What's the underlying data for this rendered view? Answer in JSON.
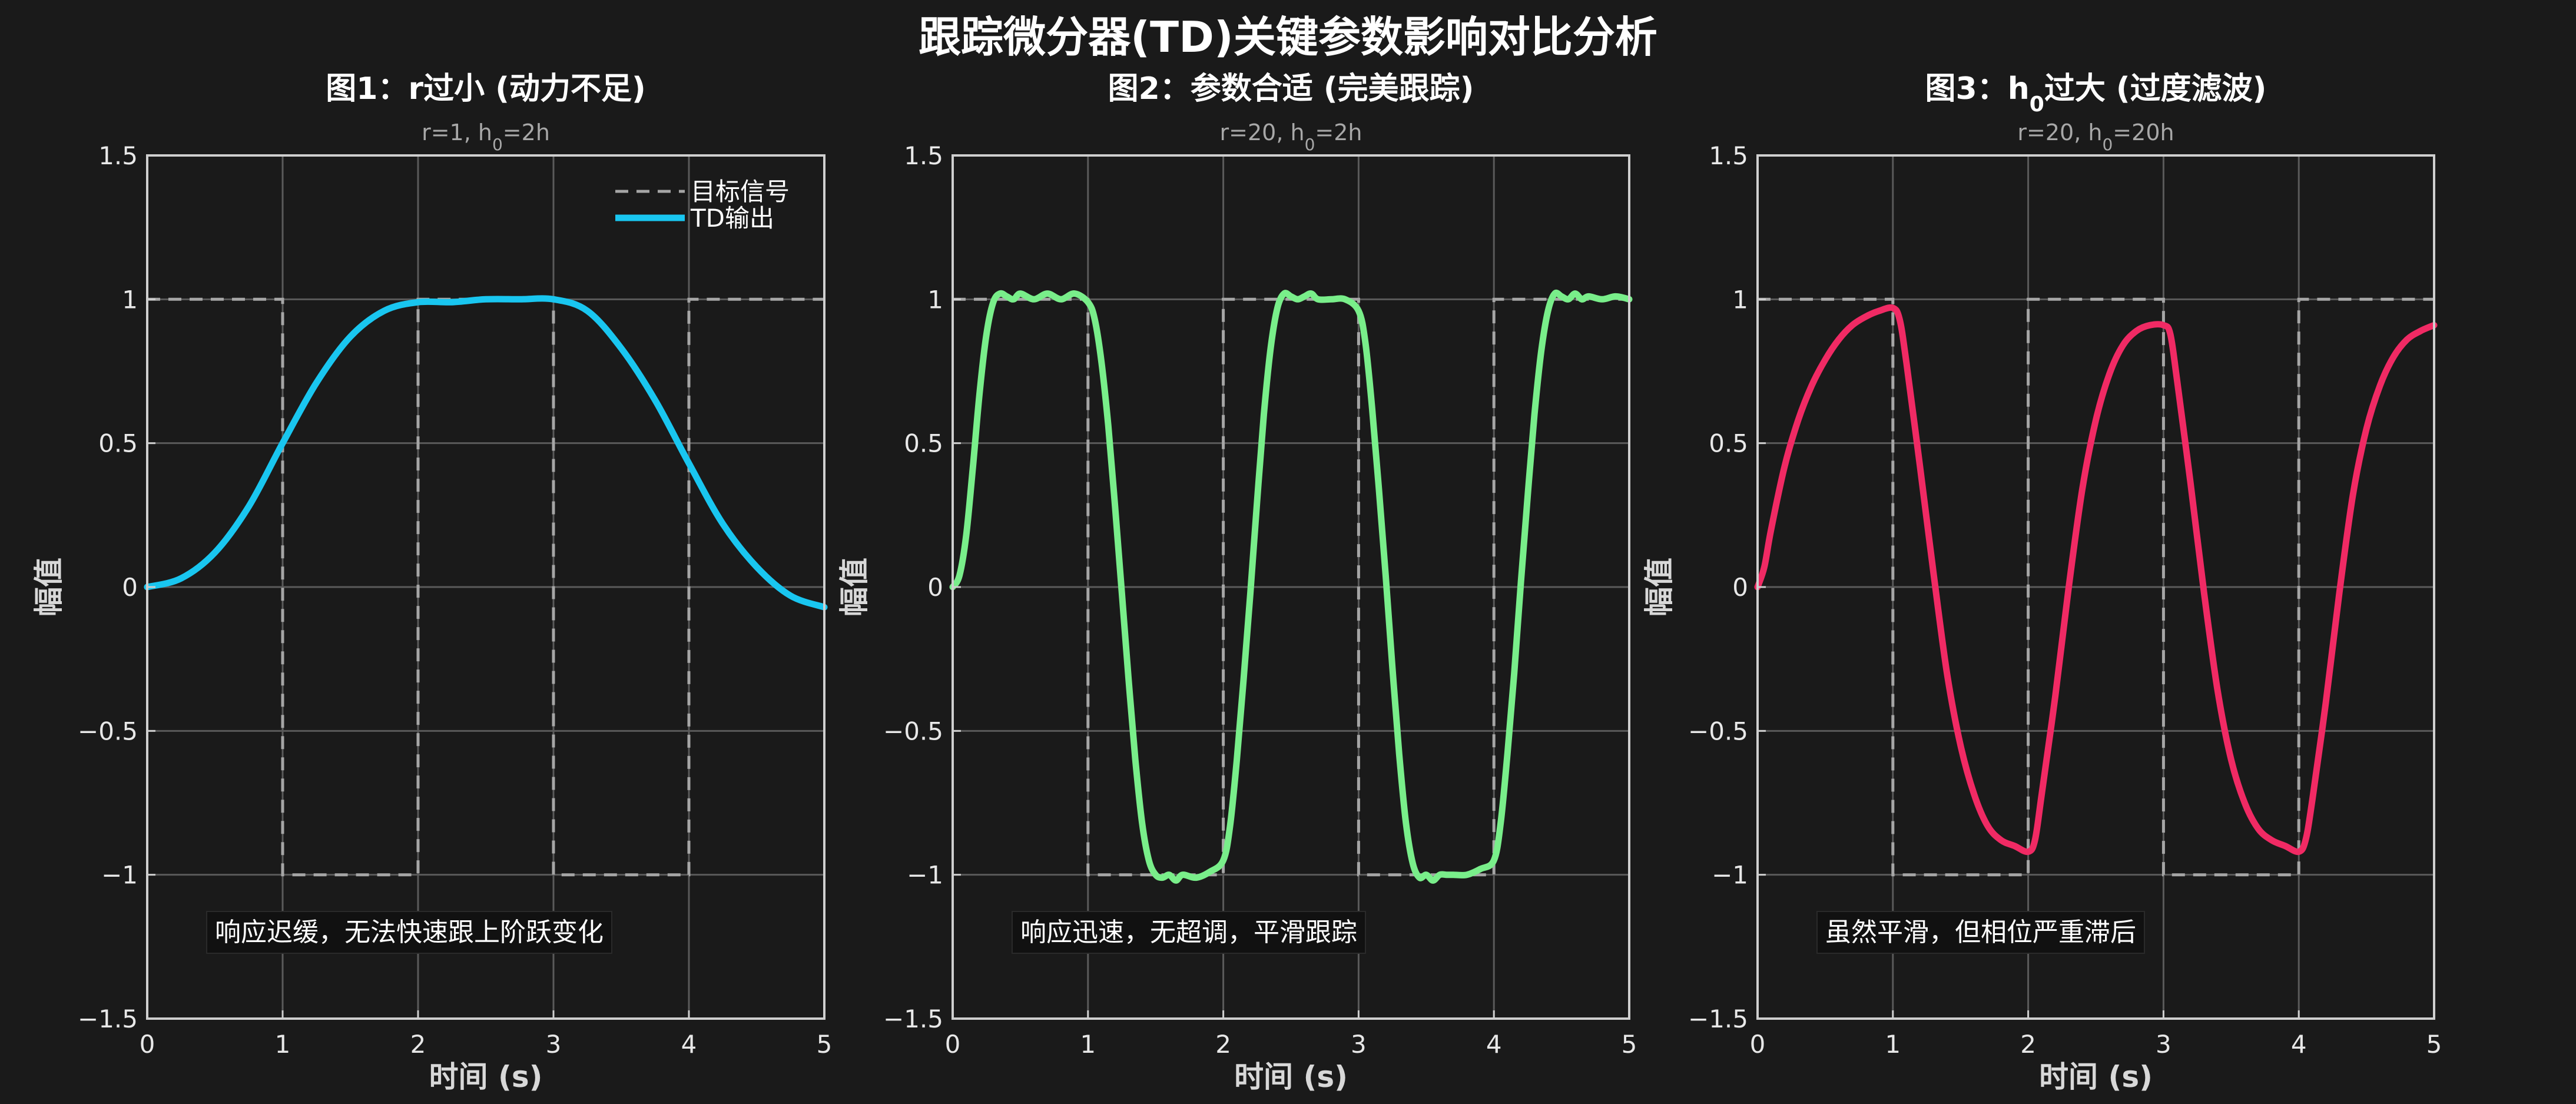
{
  "figure": {
    "title": "跟踪微分器(TD)关键参数影响对比分析",
    "background": "#1a1a1a",
    "axes_color": "#cfcfcf",
    "grid_color": "#5a5a5a",
    "target_color": "#a6a6a6"
  },
  "chart_data": [
    {
      "type": "line",
      "title": "图1：r过小 (动力不足)",
      "subtitle": {
        "before": "r=1, h",
        "sub": "0",
        "after": "=2h"
      },
      "xlabel": "时间 (s)",
      "ylabel": "幅值",
      "xlim": [
        0,
        5
      ],
      "ylim": [
        -1.5,
        1.5
      ],
      "xticks": [
        "0",
        "1",
        "2",
        "3",
        "4",
        "5"
      ],
      "yticks": [
        "1.5",
        "1",
        "0.5",
        "0",
        "−0.5",
        "−1",
        "−1.5"
      ],
      "grid": true,
      "legend": {
        "placement": "top-right",
        "entries": [
          "目标信号",
          "TD输出"
        ]
      },
      "annotation": "响应迟缓，无法快速跟上阶跃变化",
      "series": [
        {
          "name": "目标信号",
          "style": "dashed",
          "color": "#a6a6a6",
          "x": [
            0,
            1,
            1,
            2,
            2,
            3,
            3,
            4,
            4,
            5
          ],
          "y": [
            1,
            1,
            -1,
            -1,
            1,
            1,
            -1,
            -1,
            1,
            1
          ]
        },
        {
          "name": "TD输出",
          "style": "solid",
          "color": "#19c6f0",
          "x": [
            0,
            0.25,
            0.5,
            0.75,
            1.0,
            1.25,
            1.5,
            1.75,
            2.0,
            2.25,
            2.5,
            2.75,
            3.0,
            3.25,
            3.5,
            3.75,
            4.0,
            4.25,
            4.5,
            4.75,
            5.0
          ],
          "y": [
            0,
            0.03,
            0.12,
            0.28,
            0.5,
            0.71,
            0.87,
            0.96,
            0.99,
            0.99,
            1.0,
            1.0,
            1.0,
            0.96,
            0.83,
            0.65,
            0.43,
            0.22,
            0.07,
            -0.03,
            -0.07
          ]
        }
      ]
    },
    {
      "type": "line",
      "title": "图2：参数合适 (完美跟踪)",
      "subtitle": {
        "before": "r=20, h",
        "sub": "0",
        "after": "=2h"
      },
      "xlabel": "时间 (s)",
      "ylabel": "幅值",
      "xlim": [
        0,
        5
      ],
      "ylim": [
        -1.5,
        1.5
      ],
      "xticks": [
        "0",
        "1",
        "2",
        "3",
        "4",
        "5"
      ],
      "yticks": [
        "1.5",
        "1",
        "0.5",
        "0",
        "−0.5",
        "−1",
        "−1.5"
      ],
      "grid": true,
      "annotation": "响应迅速，无超调，平滑跟踪",
      "series": [
        {
          "name": "目标信号",
          "style": "dashed",
          "color": "#a6a6a6",
          "x": [
            0,
            1,
            1,
            2,
            2,
            3,
            3,
            4,
            4,
            5
          ],
          "y": [
            1,
            1,
            -1,
            -1,
            1,
            1,
            -1,
            -1,
            1,
            1
          ]
        },
        {
          "name": "TD输出",
          "style": "solid",
          "color": "#79ee8a",
          "x": [
            0,
            0.05,
            0.1,
            0.15,
            0.2,
            0.25,
            0.3,
            0.35,
            0.4,
            0.45,
            0.5,
            0.6,
            0.7,
            0.8,
            0.9,
            1.0,
            1.05,
            1.1,
            1.15,
            1.2,
            1.25,
            1.3,
            1.35,
            1.4,
            1.45,
            1.5,
            1.55,
            1.6,
            1.65,
            1.7,
            1.8,
            1.9,
            2.0,
            2.05,
            2.1,
            2.15,
            2.2,
            2.25,
            2.3,
            2.35,
            2.4,
            2.45,
            2.5,
            2.55,
            2.6,
            2.65,
            2.7,
            2.8,
            2.9,
            3.0,
            3.05,
            3.1,
            3.15,
            3.2,
            3.25,
            3.3,
            3.35,
            3.4,
            3.45,
            3.5,
            3.55,
            3.6,
            3.65,
            3.7,
            3.8,
            3.9,
            4.0,
            4.05,
            4.1,
            4.15,
            4.2,
            4.25,
            4.3,
            4.35,
            4.4,
            4.45,
            4.5,
            4.55,
            4.6,
            4.65,
            4.7,
            4.8,
            4.9,
            5.0
          ],
          "y": [
            0,
            0.04,
            0.18,
            0.42,
            0.68,
            0.88,
            0.99,
            1.02,
            1.01,
            1.0,
            1.02,
            1.0,
            1.02,
            1.0,
            1.02,
            0.99,
            0.93,
            0.78,
            0.56,
            0.28,
            -0.02,
            -0.32,
            -0.6,
            -0.82,
            -0.95,
            -1.0,
            -1.01,
            -1.0,
            -1.02,
            -1.0,
            -1.01,
            -0.99,
            -0.95,
            -0.83,
            -0.6,
            -0.32,
            -0.02,
            0.3,
            0.6,
            0.83,
            0.97,
            1.02,
            1.01,
            1.0,
            1.01,
            1.02,
            1.0,
            1.0,
            1.0,
            0.96,
            0.85,
            0.62,
            0.34,
            0.04,
            -0.28,
            -0.58,
            -0.82,
            -0.96,
            -1.01,
            -1.0,
            -1.02,
            -1.0,
            -1.0,
            -1.0,
            -1.0,
            -0.98,
            -0.95,
            -0.82,
            -0.58,
            -0.3,
            0.02,
            0.32,
            0.6,
            0.82,
            0.96,
            1.02,
            1.01,
            1.0,
            1.02,
            1.0,
            1.01,
            1.0,
            1.01,
            1.0
          ]
        }
      ]
    },
    {
      "type": "line",
      "title": {
        "before": "图3：h",
        "sub": "0",
        "after": "过大 (过度滤波)"
      },
      "subtitle": {
        "before": "r=20, h",
        "sub": "0",
        "after": "=20h"
      },
      "xlabel": "时间 (s)",
      "ylabel": "幅值",
      "xlim": [
        0,
        5
      ],
      "ylim": [
        -1.5,
        1.5
      ],
      "xticks": [
        "0",
        "1",
        "2",
        "3",
        "4",
        "5"
      ],
      "yticks": [
        "1.5",
        "1",
        "0.5",
        "0",
        "−0.5",
        "−1",
        "−1.5"
      ],
      "grid": true,
      "annotation": "虽然平滑，但相位严重滞后",
      "series": [
        {
          "name": "目标信号",
          "style": "dashed",
          "color": "#a6a6a6",
          "x": [
            0,
            1,
            1,
            2,
            2,
            3,
            3,
            4,
            4,
            5
          ],
          "y": [
            1,
            1,
            -1,
            -1,
            1,
            1,
            -1,
            -1,
            1,
            1
          ]
        },
        {
          "name": "TD输出",
          "style": "solid",
          "color": "#f02a64",
          "x": [
            0,
            0.05,
            0.1,
            0.2,
            0.3,
            0.4,
            0.5,
            0.6,
            0.7,
            0.8,
            0.9,
            1.0,
            1.05,
            1.1,
            1.2,
            1.3,
            1.4,
            1.5,
            1.6,
            1.7,
            1.8,
            1.9,
            2.0,
            2.05,
            2.1,
            2.2,
            2.3,
            2.4,
            2.5,
            2.6,
            2.7,
            2.8,
            2.9,
            3.0,
            3.05,
            3.1,
            3.2,
            3.3,
            3.4,
            3.5,
            3.6,
            3.7,
            3.8,
            3.9,
            4.0,
            4.05,
            4.1,
            4.2,
            4.3,
            4.4,
            4.5,
            4.6,
            4.7,
            4.8,
            4.9,
            5.0
          ],
          "y": [
            0,
            0.07,
            0.2,
            0.42,
            0.58,
            0.7,
            0.79,
            0.86,
            0.91,
            0.94,
            0.96,
            0.97,
            0.93,
            0.78,
            0.42,
            0.05,
            -0.3,
            -0.55,
            -0.72,
            -0.83,
            -0.88,
            -0.9,
            -0.92,
            -0.88,
            -0.72,
            -0.38,
            0.0,
            0.34,
            0.58,
            0.74,
            0.84,
            0.89,
            0.91,
            0.91,
            0.88,
            0.72,
            0.36,
            -0.02,
            -0.36,
            -0.6,
            -0.75,
            -0.84,
            -0.88,
            -0.9,
            -0.92,
            -0.88,
            -0.74,
            -0.4,
            -0.02,
            0.32,
            0.55,
            0.7,
            0.8,
            0.86,
            0.89,
            0.91
          ]
        }
      ]
    }
  ]
}
